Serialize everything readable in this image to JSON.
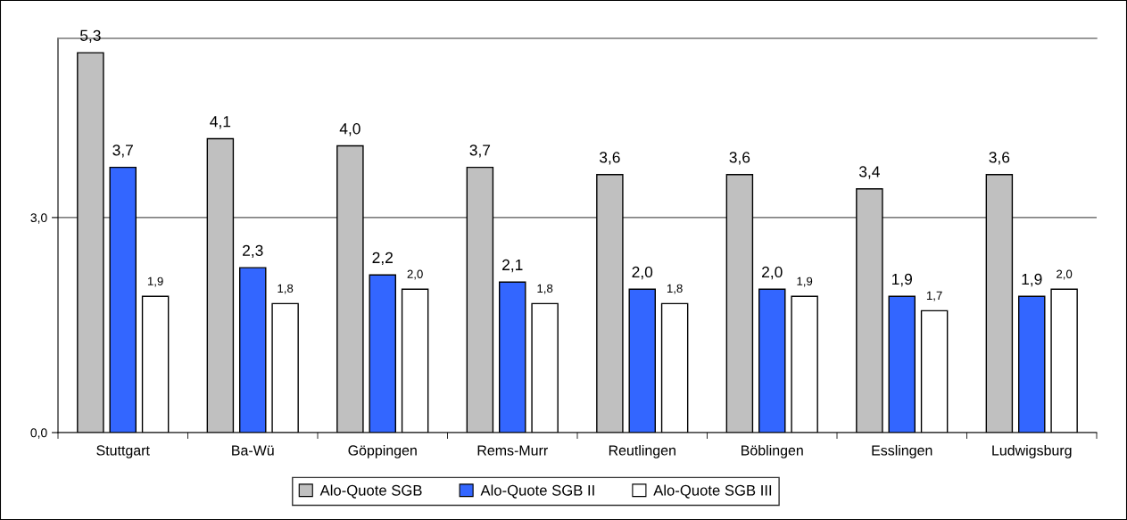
{
  "chart_data": {
    "type": "bar",
    "categories": [
      "Stuttgart",
      "Ba-Wü",
      "Göppingen",
      "Rems-Murr",
      "Reutlingen",
      "Böblingen",
      "Esslingen",
      "Ludwigsburg"
    ],
    "series": [
      {
        "name": "Alo-Quote SGB",
        "color": "#c0c0c0",
        "values": [
          5.3,
          4.1,
          4.0,
          3.7,
          3.6,
          3.6,
          3.4,
          3.6
        ],
        "value_labels": [
          "5,3",
          "4,1",
          "4,0",
          "3,7",
          "3,6",
          "3,6",
          "3,4",
          "3,6"
        ]
      },
      {
        "name": "Alo-Quote SGB II",
        "color": "#3366ff",
        "values": [
          3.7,
          2.3,
          2.2,
          2.1,
          2.0,
          2.0,
          1.9,
          1.9
        ],
        "value_labels": [
          "3,7",
          "2,3",
          "2,2",
          "2,1",
          "2,0",
          "2,0",
          "1,9",
          "1,9"
        ]
      },
      {
        "name": "Alo-Quote SGB III",
        "color": "#ffffff",
        "values": [
          1.9,
          1.8,
          2.0,
          1.8,
          1.8,
          1.9,
          1.7,
          2.0
        ],
        "value_labels": [
          "1,9",
          "1,8",
          "2,0",
          "1,8",
          "1,8",
          "1,9",
          "1,7",
          "2,0"
        ]
      }
    ],
    "ylim": [
      0,
      5.5
    ],
    "yticks": [
      {
        "value": 0,
        "label": "0,0"
      },
      {
        "value": 3,
        "label": "3,0"
      }
    ],
    "grid": "y",
    "legend": "bottom"
  }
}
